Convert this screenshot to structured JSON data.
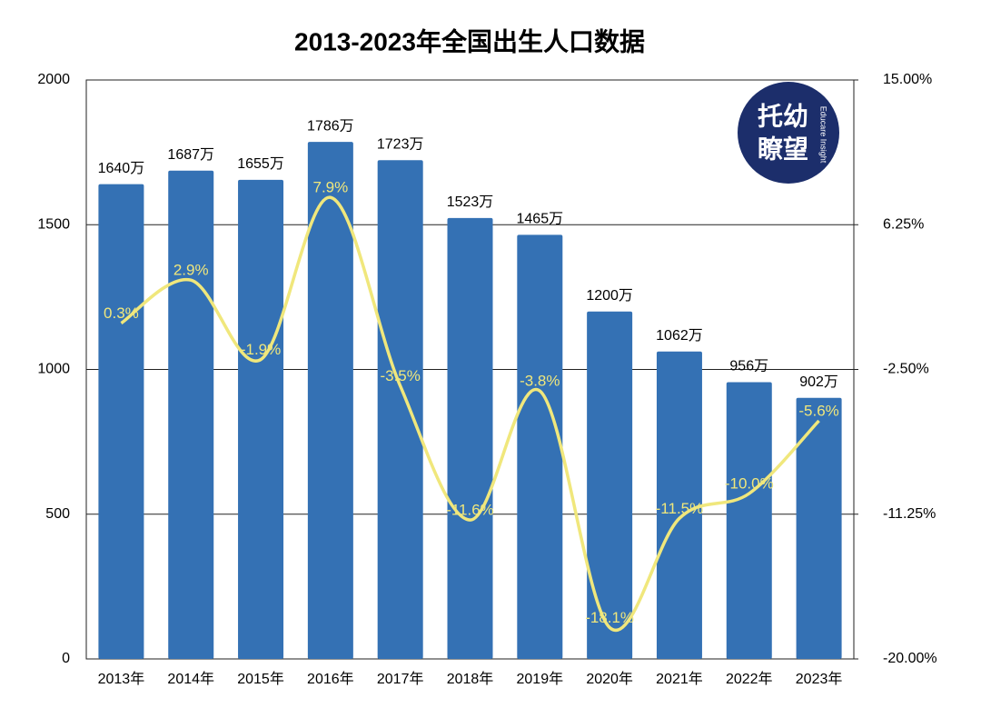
{
  "chart_data": {
    "type": "bar-line",
    "title": "2013-2023年全国出生人口数据",
    "categories": [
      "2013年",
      "2014年",
      "2015年",
      "2016年",
      "2017年",
      "2018年",
      "2019年",
      "2020年",
      "2021年",
      "2022年",
      "2023年"
    ],
    "series": [
      {
        "type": "bar",
        "color": "#3471b4",
        "values": [
          1640,
          1687,
          1655,
          1786,
          1723,
          1523,
          1465,
          1200,
          1062,
          956,
          902
        ],
        "value_labels": [
          "1640万",
          "1687万",
          "1655万",
          "1786万",
          "1723万",
          "1523万",
          "1465万",
          "1200万",
          "1062万",
          "956万",
          "902万"
        ]
      },
      {
        "type": "line",
        "axis": "y2",
        "color": "#f0e77c",
        "values": [
          0.3,
          2.9,
          -1.9,
          7.9,
          -3.5,
          -11.6,
          -3.8,
          -18.1,
          -11.5,
          -10.0,
          -5.6
        ],
        "value_labels": [
          "0.3%",
          "2.9%",
          "-1.9%",
          "7.9%",
          "-3.5%",
          "-11.6%",
          "-3.8%",
          "-18.1%",
          "-11.5%",
          "-10.0%",
          "-5.6%"
        ]
      }
    ],
    "ylim": [
      0,
      2000
    ],
    "yticks": [
      0,
      500,
      1000,
      1500,
      2000
    ],
    "y2lim": [
      -20,
      15
    ],
    "y2ticks": [
      {
        "value": -20,
        "label": "-20.00%"
      },
      {
        "value": -11.25,
        "label": "-11.25%"
      },
      {
        "value": -2.5,
        "label": "-2.50%"
      },
      {
        "value": 6.25,
        "label": "6.25%"
      },
      {
        "value": 15,
        "label": "15.00%"
      }
    ],
    "grid": true,
    "logo": {
      "line1": "托幼",
      "line2": "瞭望",
      "subtitle": "Educare Insight"
    }
  }
}
